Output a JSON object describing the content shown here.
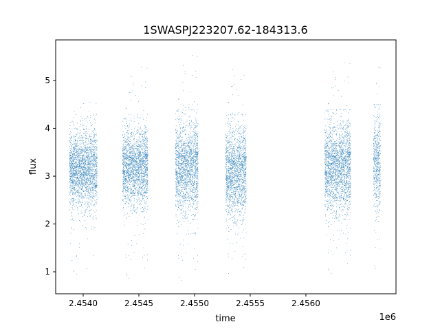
{
  "chart_data": {
    "type": "scatter",
    "title": "1SWASPJ223207.62-184313.6",
    "xlabel": "time",
    "ylabel": "flux",
    "x_offset_label": "1e6",
    "xlim": [
      2453753,
      2456809
    ],
    "ylim": [
      0.54,
      5.85
    ],
    "xticks": [
      2453800,
      2454300,
      2454800,
      2455300,
      2455800,
      2456300
    ],
    "xtick_labels": [
      "2.4540",
      "2.4545",
      "2.4550",
      "2.4555",
      "2.4560"
    ],
    "xtick_values": [
      2454000,
      2454500,
      2455000,
      2455500,
      2456000
    ],
    "yticks": [
      1,
      2,
      3,
      4,
      5
    ],
    "ytick_labels": [
      "1",
      "2",
      "3",
      "4",
      "5"
    ],
    "grid": false,
    "legend": "none",
    "marker_color": "#1f77b4",
    "seasons": [
      {
        "t_start": 2453876,
        "t_end": 2454124,
        "flux_median": 3.15,
        "flux_core": [
          2.2,
          4.0
        ],
        "flux_outliers": [
          0.9,
          4.6
        ]
      },
      {
        "t_start": 2454352,
        "t_end": 2454580,
        "flux_median": 3.2,
        "flux_core": [
          2.2,
          4.0
        ],
        "flux_outliers": [
          0.8,
          5.35
        ]
      },
      {
        "t_start": 2454827,
        "t_end": 2455031,
        "flux_median": 3.2,
        "flux_core": [
          2.1,
          4.2
        ],
        "flux_outliers": [
          0.75,
          5.6
        ]
      },
      {
        "t_start": 2455278,
        "t_end": 2455463,
        "flux_median": 3.1,
        "flux_core": [
          1.9,
          4.0
        ],
        "flux_outliers": [
          0.8,
          5.5
        ]
      },
      {
        "t_start": 2456167,
        "t_end": 2456401,
        "flux_median": 3.2,
        "flux_core": [
          2.0,
          4.1
        ],
        "flux_outliers": [
          0.9,
          5.45
        ]
      },
      {
        "t_start": 2456605,
        "t_end": 2456667,
        "flux_median": 3.3,
        "flux_core": [
          1.8,
          4.2
        ],
        "flux_outliers": [
          1.0,
          5.35
        ]
      }
    ]
  }
}
